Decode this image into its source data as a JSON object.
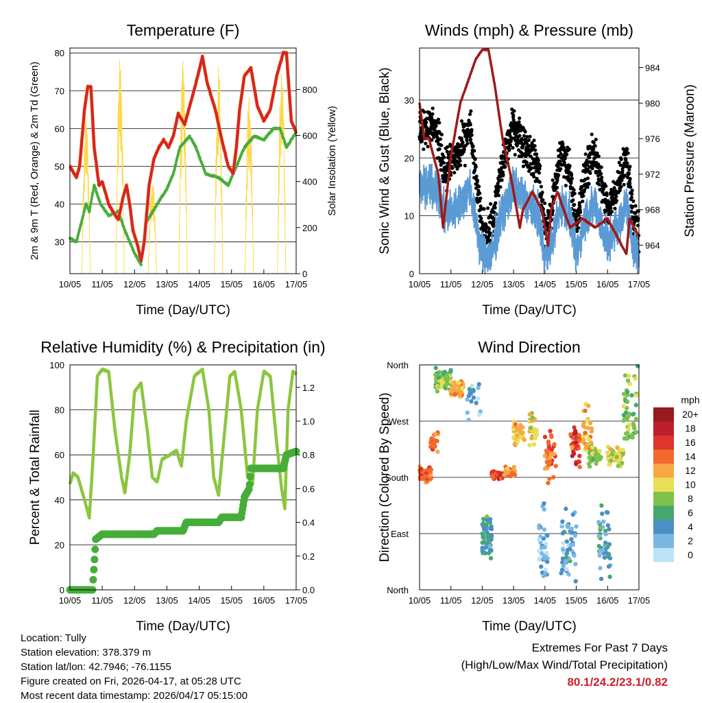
{
  "colors": {
    "temp": "#d62426",
    "temp9m": "#f5a030",
    "dewpoint": "#4aad3a",
    "solar": "#ffd84a",
    "wind": "#5b9bd5",
    "gust": "#000000",
    "pressure": "#9e1a1a",
    "rh": "#8cc63f",
    "precip": "#46ad3a"
  },
  "chart_data": [
    {
      "id": "temperature",
      "type": "line",
      "title": "Temperature (F)",
      "xlabel": "Time (Day/UTC)",
      "ylabel": "2m & 9m T (Red, Orange) & 2m Td (Green)",
      "y2label": "Solar Insolation (Yellow)",
      "xticks": [
        "10/05",
        "11/05",
        "12/05",
        "13/05",
        "14/05",
        "15/05",
        "16/05",
        "17/05"
      ],
      "xlim": [
        0,
        7
      ],
      "ylim": [
        21.6,
        81.3
      ],
      "y2lim": [
        0,
        980
      ],
      "yticks": [
        30,
        40,
        50,
        60,
        70,
        80
      ],
      "y2ticks": [
        0,
        200,
        400,
        600,
        800
      ],
      "series": [
        {
          "name": "2m T",
          "axis": "left",
          "color": "temp",
          "x": [
            0,
            0.2,
            0.3,
            0.45,
            0.55,
            0.65,
            0.75,
            0.9,
            1.0,
            1.2,
            1.4,
            1.5,
            1.65,
            1.75,
            1.85,
            1.95,
            2.1,
            2.2,
            2.3,
            2.45,
            2.6,
            2.75,
            2.9,
            3.05,
            3.2,
            3.35,
            3.55,
            3.9,
            4.1,
            4.25,
            4.5,
            4.7,
            4.9,
            5.05,
            5.15,
            5.25,
            5.4,
            5.6,
            5.8,
            6.0,
            6.2,
            6.4,
            6.6,
            6.7,
            6.85,
            7.0
          ],
          "y": [
            50,
            47,
            50,
            65,
            71,
            71,
            55,
            45,
            46,
            40,
            37,
            36,
            42,
            45,
            40,
            33,
            29,
            25,
            30,
            45,
            52,
            55,
            57,
            55,
            58,
            64,
            61,
            72,
            79,
            72,
            65,
            57,
            50,
            48,
            55,
            65,
            74,
            76,
            66,
            62,
            65,
            74,
            80,
            80,
            62,
            59
          ]
        },
        {
          "name": "2m Td",
          "axis": "left",
          "color": "dewpoint",
          "x": [
            0,
            0.2,
            0.35,
            0.5,
            0.6,
            0.75,
            0.95,
            1.2,
            1.5,
            1.7,
            2.0,
            2.2,
            2.35,
            2.7,
            3.0,
            3.2,
            3.4,
            3.7,
            3.9,
            4.2,
            4.6,
            4.9,
            5.1,
            5.4,
            5.7,
            6.0,
            6.3,
            6.5,
            6.7,
            7.0
          ],
          "y": [
            31,
            30,
            35,
            40,
            38,
            45,
            40,
            37,
            38,
            33,
            27,
            24,
            35,
            40,
            44,
            48,
            55,
            58,
            55,
            48,
            47,
            45,
            49,
            55,
            58,
            57,
            60,
            60,
            55,
            59
          ]
        },
        {
          "name": "Solar",
          "axis": "right",
          "color": "solar",
          "peaks_day": [
            0.5,
            1.55,
            2.55,
            3.5,
            4.6,
            5.55,
            6.55
          ],
          "peaks_value": [
            700,
            940,
            420,
            930,
            900,
            820,
            920
          ]
        }
      ]
    },
    {
      "id": "winds",
      "type": "scatter",
      "title": "Winds (mph) & Pressure (mb)",
      "xlabel": "Time (Day/UTC)",
      "ylabel": "Sonic Wind & Gust (Blue, Black)",
      "y2label": "Station Pressure (Maroon)",
      "xticks": [
        "10/05",
        "11/05",
        "12/05",
        "13/05",
        "14/05",
        "15/05",
        "16/05",
        "17/05"
      ],
      "xlim": [
        0,
        7
      ],
      "ylim": [
        0,
        39
      ],
      "y2lim": [
        960.8,
        986.2
      ],
      "yticks": [
        0,
        10,
        20,
        30
      ],
      "y2ticks": [
        964,
        968,
        972,
        976,
        980,
        984
      ],
      "series": [
        {
          "name": "Sonic Wind",
          "color": "wind",
          "x": [
            0,
            0.5,
            0.8,
            1.3,
            1.6,
            2.0,
            2.3,
            2.6,
            3.0,
            3.5,
            3.8,
            4.0,
            4.2,
            4.5,
            4.8,
            5.0,
            5.3,
            5.6,
            6.0,
            6.3,
            6.6,
            6.8,
            7.0
          ],
          "y": [
            15,
            15,
            10,
            12,
            15,
            3,
            3,
            10,
            15,
            12,
            10,
            3,
            5,
            12,
            10,
            3,
            10,
            12,
            5,
            8,
            12,
            5,
            3
          ]
        },
        {
          "name": "Gust",
          "color": "gust",
          "factor": 1.5,
          "offset": 3
        },
        {
          "name": "Pressure",
          "axis": "right",
          "color": "pressure",
          "x": [
            0,
            0.15,
            0.3,
            0.6,
            0.75,
            1.0,
            1.3,
            1.6,
            1.8,
            2.0,
            2.2,
            2.4,
            2.65,
            2.9,
            3.1,
            3.2,
            3.3,
            3.6,
            3.9,
            4.1,
            4.2,
            4.4,
            4.6,
            4.8,
            5.2,
            5.6,
            6.0,
            6.3,
            6.6,
            6.7,
            7.0
          ],
          "y": [
            980,
            976,
            976,
            972,
            966,
            974,
            980,
            983,
            985,
            986,
            986,
            982,
            976,
            972,
            968,
            966,
            968,
            970,
            968,
            964,
            968,
            970,
            968,
            966,
            967,
            966,
            967,
            965,
            963,
            967,
            965
          ]
        }
      ]
    },
    {
      "id": "humidity",
      "type": "line",
      "title": "Relative Humidity (%) & Precipitation (in)",
      "xlabel": "Time (Day/UTC)",
      "ylabel": "Percent & Total Rainfall",
      "xticks": [
        "10/05",
        "11/05",
        "12/05",
        "13/05",
        "14/05",
        "15/05",
        "16/05",
        "17/05"
      ],
      "xlim": [
        0,
        7
      ],
      "ylim": [
        0,
        100
      ],
      "y2lim": [
        0,
        1.3333
      ],
      "yticks": [
        0,
        20,
        40,
        60,
        80,
        100
      ],
      "y2ticks": [
        "0.0",
        "0.2",
        "0.4",
        "0.6",
        "0.8",
        "1.0",
        "1.2"
      ],
      "series": [
        {
          "name": "RH",
          "color": "rh",
          "x": [
            0,
            0.1,
            0.25,
            0.45,
            0.6,
            0.7,
            0.85,
            1.0,
            1.2,
            1.4,
            1.6,
            1.7,
            1.85,
            2.0,
            2.2,
            2.4,
            2.55,
            2.7,
            2.85,
            3.1,
            3.3,
            3.45,
            3.6,
            3.85,
            4.1,
            4.3,
            4.45,
            4.6,
            4.75,
            4.95,
            5.1,
            5.3,
            5.5,
            5.65,
            5.8,
            6.0,
            6.2,
            6.4,
            6.55,
            6.65,
            6.75,
            6.9,
            7.0
          ],
          "y": [
            47,
            52,
            50,
            40,
            32,
            55,
            95,
            98,
            97,
            70,
            50,
            43,
            60,
            88,
            92,
            70,
            50,
            48,
            58,
            60,
            62,
            55,
            75,
            95,
            98,
            80,
            50,
            42,
            65,
            95,
            97,
            80,
            50,
            47,
            80,
            97,
            95,
            65,
            45,
            36,
            80,
            97,
            96
          ]
        },
        {
          "name": "Total Precip",
          "axis": "right",
          "color": "precip",
          "x": [
            0,
            0.7,
            0.75,
            0.8,
            1.0,
            2.6,
            2.7,
            3.5,
            3.6,
            4.6,
            4.7,
            5.3,
            5.4,
            5.55,
            5.6,
            6.6,
            6.7,
            7.0
          ],
          "y": [
            0,
            0,
            0.15,
            0.3,
            0.33,
            0.33,
            0.35,
            0.35,
            0.4,
            0.4,
            0.43,
            0.43,
            0.55,
            0.6,
            0.72,
            0.72,
            0.8,
            0.82
          ]
        }
      ]
    },
    {
      "id": "direction",
      "type": "scatter",
      "title": "Wind Direction",
      "xlabel": "Time (Day/UTC)",
      "ylabel": "Direction (Colored By Speed)",
      "xticks": [
        "10/05",
        "11/05",
        "12/05",
        "13/05",
        "14/05",
        "15/05",
        "16/05",
        "17/05"
      ],
      "xlim": [
        0,
        7
      ],
      "ylim": [
        0,
        360
      ],
      "yticks": [
        "North",
        "East",
        "South",
        "West",
        "North"
      ],
      "legend": {
        "title": "mph",
        "labels": [
          "20+",
          "18",
          "16",
          "14",
          "12",
          "10",
          "8",
          "6",
          "4",
          "2",
          "0"
        ],
        "colors": [
          "#951b1e",
          "#bf1e2d",
          "#e0352b",
          "#f26a2e",
          "#f9a743",
          "#e8df56",
          "#7dc24a",
          "#47a86f",
          "#4a8fc6",
          "#7ab8e3",
          "#bde3f7"
        ],
        "placement": "right"
      },
      "clusters": [
        {
          "d0": 0,
          "d1": 0.4,
          "dir": 185,
          "spread": 12,
          "speed": 14,
          "n": 60
        },
        {
          "d0": 0.35,
          "d1": 0.6,
          "dir": 235,
          "spread": 25,
          "speed": 14,
          "n": 20
        },
        {
          "d0": 0.5,
          "d1": 1.0,
          "dir": 335,
          "spread": 15,
          "speed": 8,
          "n": 70
        },
        {
          "d0": 1.0,
          "d1": 1.4,
          "dir": 320,
          "spread": 12,
          "speed": 12,
          "n": 60
        },
        {
          "d0": 1.5,
          "d1": 2.0,
          "dir": 300,
          "spread": 40,
          "speed": 3,
          "n": 20
        },
        {
          "d0": 2.0,
          "d1": 2.3,
          "dir": 85,
          "spread": 30,
          "speed": 4,
          "n": 70
        },
        {
          "d0": 2.3,
          "d1": 2.65,
          "dir": 185,
          "spread": 8,
          "speed": 16,
          "n": 50
        },
        {
          "d0": 2.7,
          "d1": 3.05,
          "dir": 188,
          "spread": 8,
          "speed": 12,
          "n": 40
        },
        {
          "d0": 3.0,
          "d1": 3.35,
          "dir": 250,
          "spread": 20,
          "speed": 12,
          "n": 40
        },
        {
          "d0": 3.5,
          "d1": 3.75,
          "dir": 260,
          "spread": 25,
          "speed": 10,
          "n": 30
        },
        {
          "d0": 3.8,
          "d1": 4.1,
          "dir": 70,
          "spread": 55,
          "speed": 2,
          "n": 40
        },
        {
          "d0": 4.0,
          "d1": 4.35,
          "dir": 215,
          "spread": 40,
          "speed": 14,
          "n": 40
        },
        {
          "d0": 4.5,
          "d1": 5.0,
          "dir": 70,
          "spread": 55,
          "speed": 3,
          "n": 50
        },
        {
          "d0": 4.8,
          "d1": 5.15,
          "dir": 235,
          "spread": 30,
          "speed": 16,
          "n": 40
        },
        {
          "d0": 5.2,
          "d1": 5.5,
          "dir": 250,
          "spread": 45,
          "speed": 12,
          "n": 40
        },
        {
          "d0": 5.4,
          "d1": 5.8,
          "dir": 215,
          "spread": 15,
          "speed": 8,
          "n": 40
        },
        {
          "d0": 5.7,
          "d1": 6.1,
          "dir": 80,
          "spread": 55,
          "speed": 4,
          "n": 40
        },
        {
          "d0": 6.0,
          "d1": 6.5,
          "dir": 215,
          "spread": 15,
          "speed": 10,
          "n": 60
        },
        {
          "d0": 6.5,
          "d1": 7.0,
          "dir": 290,
          "spread": 55,
          "speed": 8,
          "n": 50
        }
      ]
    }
  ],
  "info": {
    "location": "Location: Tully",
    "elevation": "Station elevation: 378.379 m",
    "latlon": "Station lat/lon: 42.7946; -76.1155",
    "created": "Figure created on Fri, 2026-04-17, at 05:28 UTC",
    "recent": "Most recent data timestamp: 2026/04/17 05:15:00"
  },
  "extremes": {
    "title": "Extremes For Past 7 Days",
    "subtitle": "(High/Low/Max Wind/Total Precipitation)",
    "values": "80.1/24.2/23.1/0.82"
  }
}
